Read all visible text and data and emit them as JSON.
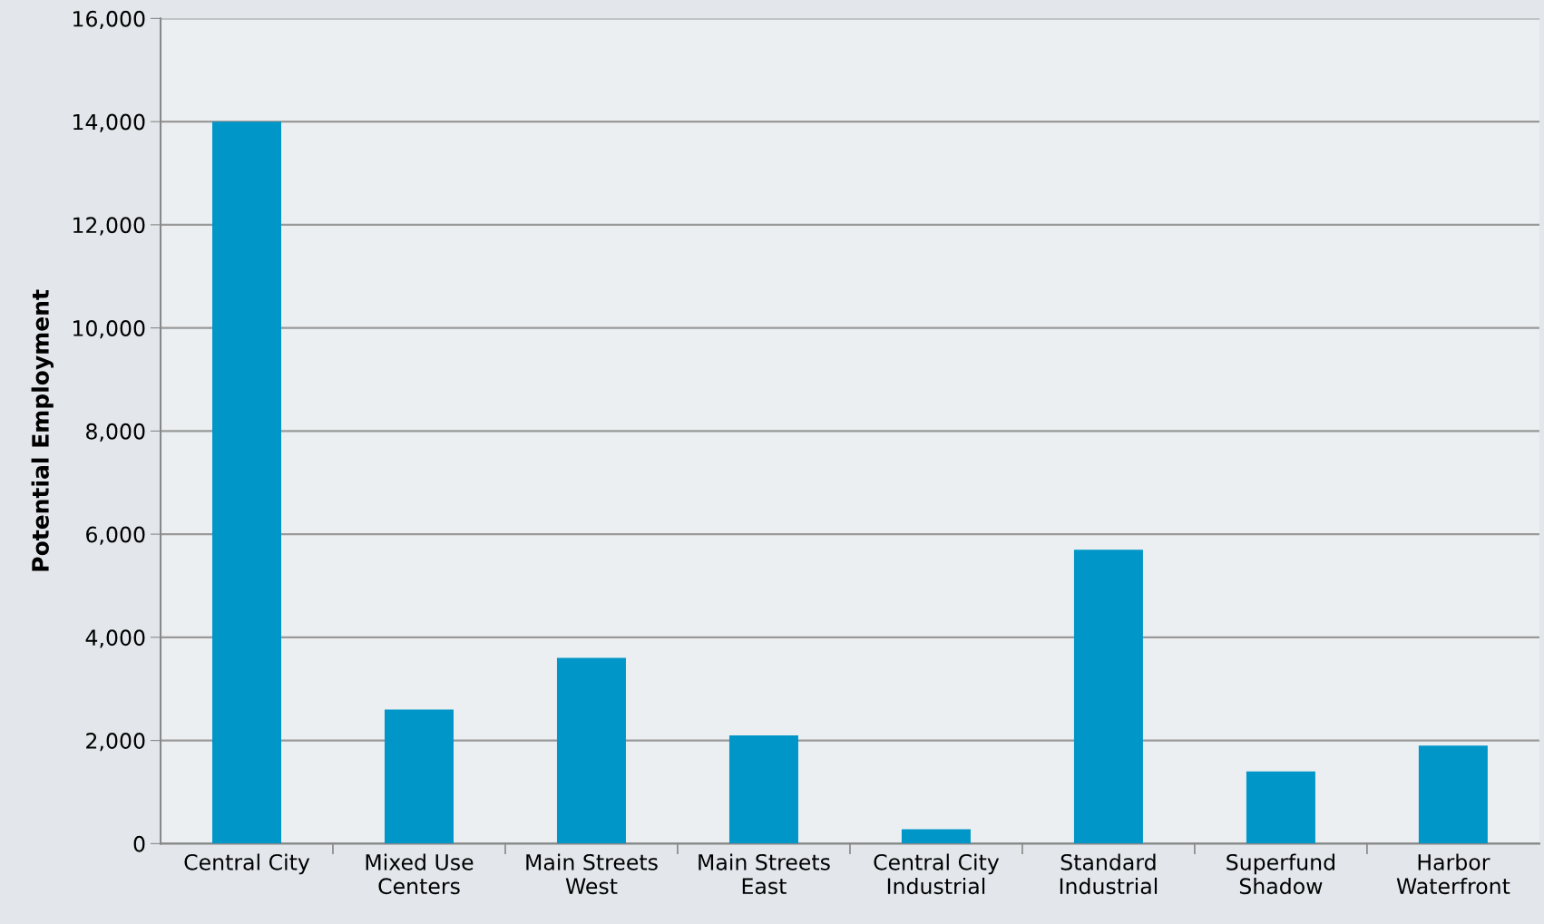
{
  "chart_data": {
    "type": "bar",
    "ylabel": "Potential Employment",
    "categories": [
      "Central City",
      "Mixed Use\nCenters",
      "Main Streets\nWest",
      "Main Streets\nEast",
      "Central City\nIndustrial",
      "Standard\nIndustrial",
      "Superfund\nShadow",
      "Harbor\nWaterfront"
    ],
    "values": [
      14000,
      2600,
      3600,
      2100,
      280,
      5700,
      1400,
      1900
    ],
    "color": "#0096c8",
    "ylim": [
      0,
      16000
    ],
    "yticks": [
      {
        "value": 0,
        "label": "0"
      },
      {
        "value": 2000,
        "label": "2,000"
      },
      {
        "value": 4000,
        "label": "4,000"
      },
      {
        "value": 6000,
        "label": "6,000"
      },
      {
        "value": 8000,
        "label": "8,000"
      },
      {
        "value": 10000,
        "label": "10,000"
      },
      {
        "value": 12000,
        "label": "12,000"
      },
      {
        "value": 14000,
        "label": "14,000"
      },
      {
        "value": 16000,
        "label": "16,000"
      }
    ],
    "grid": "y",
    "legend": false
  }
}
